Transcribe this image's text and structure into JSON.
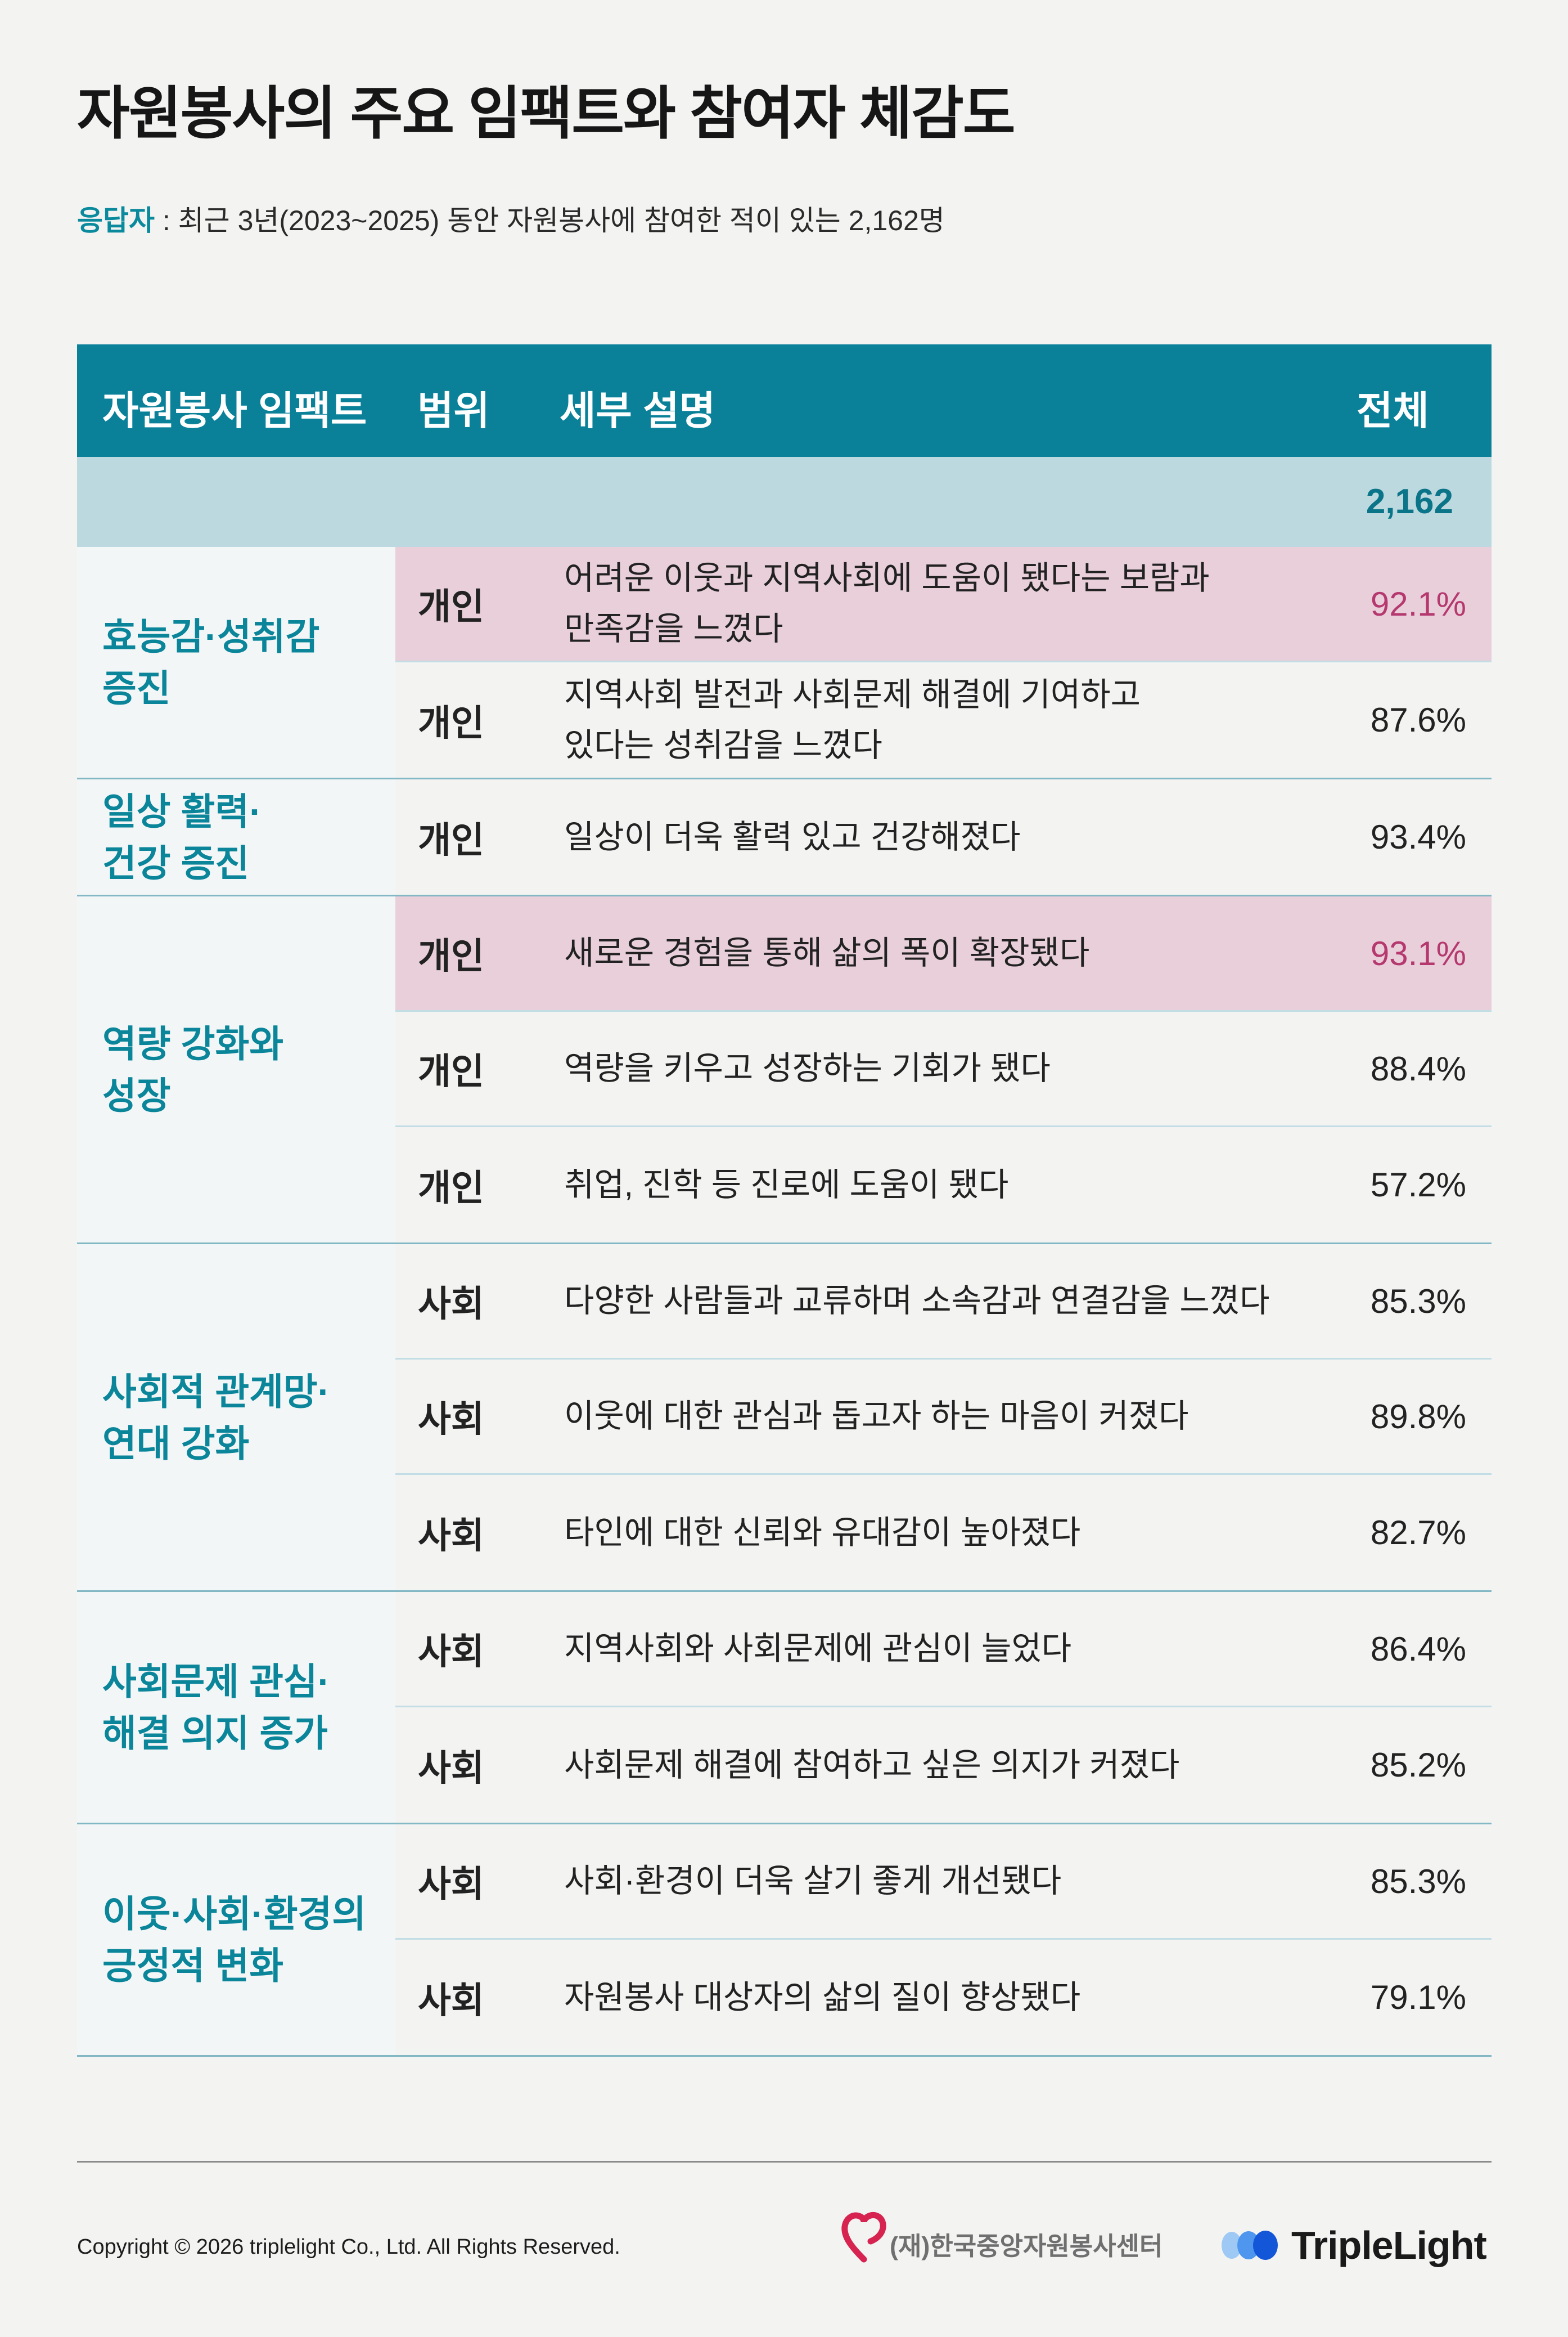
{
  "title": "자원봉사의 주요 임팩트와 참여자 체감도",
  "subtitle": {
    "label": "응답자",
    "text": " : 최근 3년(2023~2025) 동안 자원봉사에 참여한 적이 있는 2,162명"
  },
  "table": {
    "headers": {
      "impact": "자원봉사 임팩트",
      "scope": "범위",
      "detail": "세부 설명",
      "total": "전체"
    },
    "respondents": "2,162",
    "groups": [
      {
        "category": [
          "효능감·성취감",
          "증진"
        ],
        "rows": [
          {
            "scope": "개인",
            "desc": [
              "어려운 이웃과 지역사회에 도움이 됐다는 보람과",
              "만족감을 느꼈다"
            ],
            "pct": "92.1%",
            "highlight": true
          },
          {
            "scope": "개인",
            "desc": [
              "지역사회 발전과 사회문제 해결에 기여하고",
              "있다는 성취감을 느꼈다"
            ],
            "pct": "87.6%",
            "highlight": false
          }
        ]
      },
      {
        "category": [
          "일상 활력·",
          "건강 증진"
        ],
        "rows": [
          {
            "scope": "개인",
            "desc": [
              "일상이 더욱 활력 있고 건강해졌다"
            ],
            "pct": "93.4%",
            "highlight": false
          }
        ]
      },
      {
        "category": [
          "역량 강화와",
          "성장"
        ],
        "rows": [
          {
            "scope": "개인",
            "desc": [
              "새로운 경험을 통해 삶의 폭이 확장됐다"
            ],
            "pct": "93.1%",
            "highlight": true
          },
          {
            "scope": "개인",
            "desc": [
              "역량을 키우고 성장하는 기회가 됐다"
            ],
            "pct": "88.4%",
            "highlight": false
          },
          {
            "scope": "개인",
            "desc": [
              "취업, 진학 등 진로에 도움이 됐다"
            ],
            "pct": "57.2%",
            "highlight": false
          }
        ]
      },
      {
        "category": [
          "사회적 관계망·",
          "연대 강화"
        ],
        "rows": [
          {
            "scope": "사회",
            "desc": [
              "다양한 사람들과 교류하며 소속감과 연결감을 느꼈다"
            ],
            "pct": "85.3%",
            "highlight": false
          },
          {
            "scope": "사회",
            "desc": [
              "이웃에 대한 관심과 돕고자 하는 마음이 커졌다"
            ],
            "pct": "89.8%",
            "highlight": false
          },
          {
            "scope": "사회",
            "desc": [
              "타인에 대한 신뢰와 유대감이 높아졌다"
            ],
            "pct": "82.7%",
            "highlight": false
          }
        ]
      },
      {
        "category": [
          "사회문제 관심·",
          "해결 의지 증가"
        ],
        "rows": [
          {
            "scope": "사회",
            "desc": [
              "지역사회와 사회문제에 관심이 늘었다"
            ],
            "pct": "86.4%",
            "highlight": false
          },
          {
            "scope": "사회",
            "desc": [
              "사회문제 해결에 참여하고 싶은 의지가 커졌다"
            ],
            "pct": "85.2%",
            "highlight": false
          }
        ]
      },
      {
        "category": [
          "이웃·사회·환경의",
          "긍정적 변화"
        ],
        "rows": [
          {
            "scope": "사회",
            "desc": [
              "사회·환경이 더욱 살기 좋게 개선됐다"
            ],
            "pct": "85.3%",
            "highlight": false
          },
          {
            "scope": "사회",
            "desc": [
              "자원봉사 대상자의 삶의 질이 향상됐다"
            ],
            "pct": "79.1%",
            "highlight": false
          }
        ]
      }
    ]
  },
  "footer": {
    "copyright": "Copyright © 2026 triplelight Co., Ltd. All Rights Reserved.",
    "org_logo_text": "(재)한국중앙자원봉사센터",
    "brand_logo_text": "TripleLight"
  },
  "colors": {
    "accent": "#0a8199",
    "highlight_row": "#e8cfda",
    "highlight_text": "#b5386f",
    "total_row": "#bdd9e0"
  }
}
